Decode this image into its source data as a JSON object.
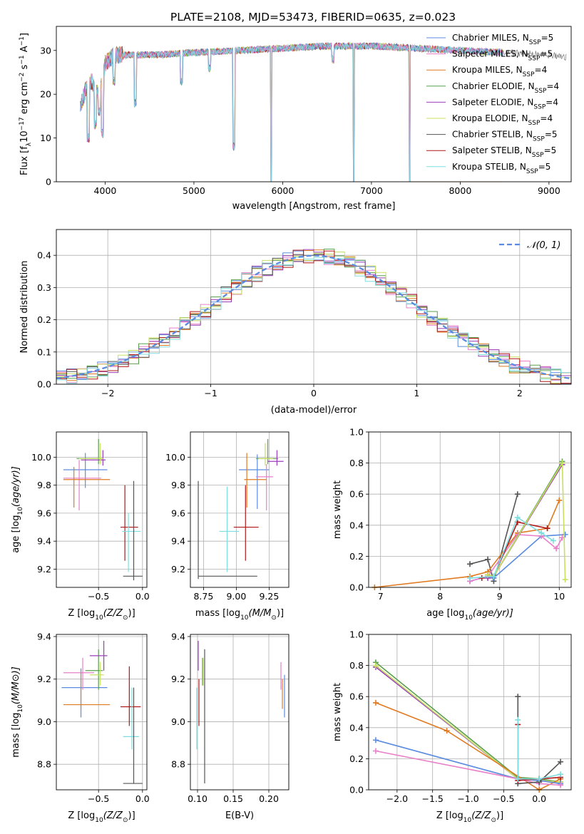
{
  "title": "PLATE=2108, MJD=53473, FIBERID=0635, z=0.023",
  "colors": {
    "blue": "#5b8be0",
    "orange": "#e07a20",
    "green": "#5aa050",
    "purple": "#9a3fb8",
    "yellowgreen": "#c8e060",
    "gray": "#555555",
    "red": "#b01818",
    "cyan": "#7fdde0",
    "pink": "#e87fc8",
    "grid": "#b0b0b0",
    "normal_curve": "#5b8be0"
  },
  "chart_data": [
    {
      "id": "spectrum",
      "type": "line",
      "xlabel": "wavelength [Angstrom, rest frame]",
      "ylabel": "Flux [f",
      "ylabel_sub": "λ",
      "ylabel_rest": "10",
      "ylabel_exp1": "−17",
      "ylabel_tail": " erg cm",
      "ylabel_exp2": "−2",
      "ylabel_tail2": " s",
      "ylabel_exp3": "−1",
      "ylabel_tail3": " A",
      "ylabel_exp4": "−1",
      "ylabel_end": "]",
      "xlim": [
        3450,
        9250
      ],
      "ylim": [
        0,
        35.5
      ],
      "xticks": [
        4000,
        5000,
        6000,
        7000,
        8000,
        9000
      ],
      "yticks": [
        0,
        10,
        20,
        30
      ],
      "grid": false,
      "legend_position": "upper-right",
      "legend": [
        {
          "label": "Chabrier MILES, N",
          "sub": "SSP",
          "suffix": "=5",
          "color": "blue"
        },
        {
          "label": "Salpeter MILES, N",
          "sub": "SSP",
          "suffix": "=5",
          "color": "pink"
        },
        {
          "label": "Kroupa MILES, N",
          "sub": "SSP",
          "suffix": "=4",
          "color": "orange"
        },
        {
          "label": "Chabrier ELODIE, N",
          "sub": "SSP",
          "suffix": "=4",
          "color": "green"
        },
        {
          "label": "Salpeter ELODIE, N",
          "sub": "SSP",
          "suffix": "=4",
          "color": "purple"
        },
        {
          "label": "Kroupa ELODIE, N",
          "sub": "SSP",
          "suffix": "=4",
          "color": "yellowgreen"
        },
        {
          "label": "Chabrier STELIB, N",
          "sub": "SSP",
          "suffix": "=5",
          "color": "gray"
        },
        {
          "label": "Salpeter STELIB, N",
          "sub": "SSP",
          "suffix": "=5",
          "color": "red"
        },
        {
          "label": "Kroupa STELIB, N",
          "sub": "SSP",
          "suffix": "=5",
          "color": "cyan"
        }
      ],
      "continuum": [
        [
          3720,
          17
        ],
        [
          3780,
          21
        ],
        [
          3850,
          23
        ],
        [
          3900,
          20
        ],
        [
          3960,
          22
        ],
        [
          4000,
          27
        ],
        [
          4100,
          29
        ],
        [
          4300,
          29
        ],
        [
          4600,
          29
        ],
        [
          5000,
          29.5
        ],
        [
          5500,
          30
        ],
        [
          6000,
          30.5
        ],
        [
          6500,
          31
        ],
        [
          7000,
          31
        ],
        [
          7500,
          30.5
        ],
        [
          8000,
          30
        ],
        [
          8500,
          29.5
        ],
        [
          9000,
          29
        ],
        [
          9200,
          28.5
        ]
      ],
      "dips": [
        [
          3810,
          9
        ],
        [
          3890,
          12
        ],
        [
          3935,
          15
        ],
        [
          3970,
          10
        ],
        [
          4100,
          22
        ],
        [
          4340,
          17
        ],
        [
          4860,
          22
        ],
        [
          5175,
          25
        ],
        [
          5450,
          7
        ],
        [
          5870,
          0
        ],
        [
          6565,
          27
        ],
        [
          6800,
          0
        ],
        [
          7430,
          0
        ]
      ],
      "spectrum_range": [
        3720,
        9200
      ]
    },
    {
      "id": "residuals",
      "type": "histogram",
      "xlabel": "(data-model)/error",
      "ylabel": "Normed distribution",
      "xlim": [
        -2.5,
        2.5
      ],
      "ylim": [
        0,
        0.48
      ],
      "xticks": [
        -2,
        -1,
        0,
        1,
        2
      ],
      "yticks": [
        0.0,
        0.1,
        0.2,
        0.3,
        0.4
      ],
      "grid": true,
      "legend_position": "upper-right",
      "normal_label": "𝒩(0, 1)",
      "bin_width": 0.1,
      "bin_start": -2.5,
      "series_colors": [
        "blue",
        "pink",
        "orange",
        "green",
        "purple",
        "yellowgreen",
        "gray",
        "red",
        "cyan"
      ]
    },
    {
      "id": "age_vs_Z",
      "type": "scatter",
      "xlabel": "Z [log",
      "xlabel_sub": "10",
      "xlabel_rest": "(Z/Z",
      "xlabel_sub2": "⊙",
      "xlabel_end": ")]",
      "ylabel": "age  [log",
      "ylabel_sub": "10",
      "ylabel_end": "(age/yr)]",
      "xlim": [
        -0.98,
        0.05
      ],
      "ylim": [
        9.07,
        10.18
      ],
      "xticks": [
        -0.5,
        0.0
      ],
      "yticks": [
        9.2,
        9.4,
        9.6,
        9.8,
        10.0
      ],
      "grid": true,
      "points": [
        {
          "c": "blue",
          "x": -0.65,
          "y": 9.91,
          "xe": [
            -0.9,
            -0.4
          ],
          "ye": [
            9.78,
            10.03
          ]
        },
        {
          "c": "pink",
          "x": -0.72,
          "y": 9.85,
          "xe": [
            -0.9,
            -0.47
          ],
          "ye": [
            9.62,
            9.98
          ]
        },
        {
          "c": "orange",
          "x": -0.78,
          "y": 9.84,
          "xe": [
            -0.9,
            -0.37
          ],
          "ye": [
            9.64,
            9.93
          ]
        },
        {
          "c": "green",
          "x": -0.5,
          "y": 9.99,
          "xe": [
            -0.75,
            -0.45
          ],
          "ye": [
            9.95,
            10.13
          ]
        },
        {
          "c": "purple",
          "x": -0.45,
          "y": 9.98,
          "xe": [
            -0.7,
            -0.42
          ],
          "ye": [
            9.94,
            10.05
          ]
        },
        {
          "c": "yellowgreen",
          "x": -0.48,
          "y": 9.99,
          "xe": [
            -0.72,
            -0.44
          ],
          "ye": [
            9.95,
            10.1
          ]
        },
        {
          "c": "red",
          "x": -0.2,
          "y": 9.5,
          "xe": [
            -0.25,
            -0.05
          ],
          "ye": [
            9.26,
            9.8
          ]
        },
        {
          "c": "cyan",
          "x": -0.16,
          "y": 9.47,
          "xe": [
            -0.23,
            -0.02
          ],
          "ye": [
            9.18,
            9.6
          ]
        },
        {
          "c": "gray",
          "x": -0.1,
          "y": 9.15,
          "xe": [
            -0.22,
            0.0
          ],
          "ye": [
            9.12,
            9.83
          ]
        }
      ]
    },
    {
      "id": "age_vs_mass",
      "type": "scatter",
      "xlabel": "mass [log",
      "xlabel_sub": "10",
      "xlabel_rest": "(M/M",
      "xlabel_sub2": "⊙",
      "xlabel_end": ")]",
      "xlim": [
        8.65,
        9.4
      ],
      "ylim": [
        9.07,
        10.18
      ],
      "xticks": [
        8.75,
        9.0,
        9.25
      ],
      "yticks": [
        9.2,
        9.4,
        9.6,
        9.8,
        10.0
      ],
      "grid": true,
      "points": [
        {
          "c": "blue",
          "x": 9.16,
          "y": 9.91,
          "xe": [
            9.02,
            9.25
          ],
          "ye": [
            9.63,
            10.02
          ]
        },
        {
          "c": "pink",
          "x": 9.23,
          "y": 9.86,
          "xe": [
            9.15,
            9.28
          ],
          "ye": [
            9.62,
            9.95
          ]
        },
        {
          "c": "orange",
          "x": 9.08,
          "y": 9.84,
          "xe": [
            9.06,
            9.23
          ],
          "ye": [
            9.64,
            10.03
          ]
        },
        {
          "c": "green",
          "x": 9.24,
          "y": 9.99,
          "xe": [
            9.15,
            9.32
          ],
          "ye": [
            9.95,
            10.13
          ]
        },
        {
          "c": "purple",
          "x": 9.31,
          "y": 9.97,
          "xe": [
            9.24,
            9.36
          ],
          "ye": [
            9.94,
            10.05
          ]
        },
        {
          "c": "yellowgreen",
          "x": 9.22,
          "y": 9.99,
          "xe": [
            9.17,
            9.28
          ],
          "ye": [
            9.94,
            10.1
          ]
        },
        {
          "c": "red",
          "x": 9.07,
          "y": 9.5,
          "xe": [
            8.98,
            9.17
          ],
          "ye": [
            9.26,
            9.8
          ]
        },
        {
          "c": "cyan",
          "x": 8.93,
          "y": 9.47,
          "xe": [
            8.87,
            9.02
          ],
          "ye": [
            9.18,
            9.79
          ]
        },
        {
          "c": "gray",
          "x": 8.71,
          "y": 9.15,
          "xe": [
            8.71,
            9.16
          ],
          "ye": [
            9.13,
            9.83
          ]
        }
      ]
    },
    {
      "id": "weight_vs_age",
      "type": "line",
      "xlabel": "age  [log",
      "xlabel_sub": "10",
      "xlabel_end": "(age/yr)]",
      "ylabel": "mass weight",
      "xlim": [
        6.8,
        10.2
      ],
      "ylim": [
        0,
        1.0
      ],
      "xticks": [
        7,
        8,
        9,
        10
      ],
      "yticks": [
        0.0,
        0.2,
        0.4,
        0.6,
        0.8,
        1.0
      ],
      "grid": true,
      "series": [
        {
          "c": "gray",
          "x": [
            8.5,
            8.8,
            8.9,
            9.3
          ],
          "y": [
            0.15,
            0.18,
            0.04,
            0.6
          ]
        },
        {
          "c": "orange",
          "x": [
            6.9,
            8.5,
            8.8,
            9.3,
            9.8,
            10.0
          ],
          "y": [
            0.0,
            0.07,
            0.1,
            0.35,
            0.38,
            0.56
          ]
        },
        {
          "c": "blue",
          "x": [
            8.5,
            8.8,
            8.9,
            9.7,
            10.1
          ],
          "y": [
            0.04,
            0.07,
            0.06,
            0.33,
            0.34
          ]
        },
        {
          "c": "pink",
          "x": [
            8.5,
            8.8,
            9.3,
            9.7,
            9.95,
            10.05
          ],
          "y": [
            0.04,
            0.07,
            0.34,
            0.33,
            0.25,
            0.32
          ]
        },
        {
          "c": "red",
          "x": [
            8.7,
            8.9,
            9.3,
            9.8
          ],
          "y": [
            0.06,
            0.07,
            0.42,
            0.38
          ]
        },
        {
          "c": "green",
          "x": [
            8.8,
            8.9,
            10.05
          ],
          "y": [
            0.08,
            0.07,
            0.81
          ]
        },
        {
          "c": "purple",
          "x": [
            8.8,
            8.9,
            10.05
          ],
          "y": [
            0.06,
            0.07,
            0.79
          ]
        },
        {
          "c": "yellowgreen",
          "x": [
            8.8,
            8.9,
            10.05,
            10.1
          ],
          "y": [
            0.08,
            0.07,
            0.8,
            0.05
          ]
        },
        {
          "c": "cyan",
          "x": [
            8.5,
            8.9,
            9.3,
            9.7,
            9.9
          ],
          "y": [
            0.06,
            0.07,
            0.45,
            0.35,
            0.3
          ]
        }
      ]
    },
    {
      "id": "mass_vs_Z",
      "type": "scatter",
      "xlabel": "Z [log",
      "xlabel_sub": "10",
      "xlabel_rest": "(Z/Z",
      "xlabel_sub2": "⊙",
      "xlabel_end": ")]",
      "ylabel": "mass [log",
      "ylabel_sub": "10",
      "ylabel_end": "(M/M⊙)]",
      "xlim": [
        -0.98,
        0.05
      ],
      "ylim": [
        8.68,
        9.41
      ],
      "xticks": [
        -0.5,
        0.0
      ],
      "yticks": [
        8.8,
        9.0,
        9.2,
        9.4
      ],
      "grid": true,
      "points": [
        {
          "c": "blue",
          "x": -0.7,
          "y": 9.16,
          "xe": [
            -0.92,
            -0.4
          ],
          "ye": [
            9.02,
            9.25
          ]
        },
        {
          "c": "pink",
          "x": -0.68,
          "y": 9.23,
          "xe": [
            -0.9,
            -0.55
          ],
          "ye": [
            9.15,
            9.3
          ]
        },
        {
          "c": "orange",
          "x": -0.7,
          "y": 9.08,
          "xe": [
            -0.9,
            -0.37
          ],
          "ye": [
            9.06,
            9.23
          ]
        },
        {
          "c": "green",
          "x": -0.5,
          "y": 9.24,
          "xe": [
            -0.65,
            -0.45
          ],
          "ye": [
            9.15,
            9.34
          ]
        },
        {
          "c": "purple",
          "x": -0.44,
          "y": 9.31,
          "xe": [
            -0.6,
            -0.4
          ],
          "ye": [
            9.24,
            9.38
          ]
        },
        {
          "c": "yellowgreen",
          "x": -0.48,
          "y": 9.22,
          "xe": [
            -0.6,
            -0.44
          ],
          "ye": [
            9.17,
            9.28
          ]
        },
        {
          "c": "red",
          "x": -0.15,
          "y": 9.07,
          "xe": [
            -0.25,
            -0.02
          ],
          "ye": [
            8.98,
            9.26
          ]
        },
        {
          "c": "cyan",
          "x": -0.12,
          "y": 8.93,
          "xe": [
            -0.22,
            -0.04
          ],
          "ye": [
            8.87,
            9.16
          ]
        },
        {
          "c": "gray",
          "x": -0.1,
          "y": 8.71,
          "xe": [
            -0.22,
            0.0
          ],
          "ye": [
            8.71,
            9.16
          ]
        }
      ]
    },
    {
      "id": "mass_vs_ebv",
      "type": "scatter",
      "xlabel": "E(B-V)",
      "xlim": [
        0.09,
        0.228
      ],
      "ylim": [
        8.68,
        9.41
      ],
      "xticks": [
        0.1,
        0.15,
        0.2
      ],
      "yticks": [
        8.8,
        9.0,
        9.2,
        9.4
      ],
      "grid": true,
      "points": [
        {
          "c": "blue",
          "x": 0.222,
          "y": 9.16,
          "ye": [
            9.02,
            9.22
          ]
        },
        {
          "c": "pink",
          "x": 0.217,
          "y": 9.23,
          "ye": [
            9.15,
            9.28
          ]
        },
        {
          "c": "orange",
          "x": 0.219,
          "y": 9.08,
          "ye": [
            9.06,
            9.2
          ]
        },
        {
          "c": "green",
          "x": 0.107,
          "y": 9.24,
          "ye": [
            9.17,
            9.3
          ]
        },
        {
          "c": "purple",
          "x": 0.101,
          "y": 9.31,
          "ye": [
            9.24,
            9.38
          ]
        },
        {
          "c": "yellowgreen",
          "x": 0.108,
          "y": 9.22,
          "ye": [
            9.17,
            9.3
          ]
        },
        {
          "c": "red",
          "x": 0.102,
          "y": 9.07,
          "ye": [
            8.98,
            9.2
          ]
        },
        {
          "c": "cyan",
          "x": 0.099,
          "y": 8.93,
          "ye": [
            8.87,
            9.16
          ]
        },
        {
          "c": "gray",
          "x": 0.11,
          "y": 8.71,
          "ye": [
            8.71,
            9.34
          ]
        }
      ]
    },
    {
      "id": "weight_vs_Z",
      "type": "line",
      "xlabel": "Z [log",
      "xlabel_sub": "10",
      "xlabel_rest": "(Z/Z",
      "xlabel_sub2": "⊙",
      "xlabel_end": ")]",
      "ylabel": "mass weight",
      "xlim": [
        -2.4,
        0.45
      ],
      "ylim": [
        0,
        1.0
      ],
      "xticks": [
        -2.0,
        -1.5,
        -1.0,
        -0.5,
        0.0
      ],
      "yticks": [
        0.0,
        0.2,
        0.4,
        0.6,
        0.8,
        1.0
      ],
      "grid": true,
      "series": [
        {
          "c": "green",
          "x": [
            -2.3,
            -0.3,
            0.0,
            0.3
          ],
          "y": [
            0.82,
            0.08,
            0.07,
            0.05
          ]
        },
        {
          "c": "purple",
          "x": [
            -2.3,
            -0.3,
            0.0,
            0.3
          ],
          "y": [
            0.79,
            0.07,
            0.06,
            0.04
          ]
        },
        {
          "c": "yellowgreen",
          "x": [
            -2.3,
            -0.3,
            0.0,
            0.3
          ],
          "y": [
            0.8,
            0.07,
            0.06,
            0.05
          ]
        },
        {
          "c": "orange",
          "x": [
            -2.3,
            -1.3,
            0.0,
            0.3
          ],
          "y": [
            0.56,
            0.38,
            0.0,
            0.07
          ]
        },
        {
          "c": "blue",
          "x": [
            -2.3,
            -0.3,
            0.0,
            0.3
          ],
          "y": [
            0.32,
            0.07,
            0.06,
            0.04
          ]
        },
        {
          "c": "pink",
          "x": [
            -2.3,
            -0.3,
            0.0,
            0.3
          ],
          "y": [
            0.25,
            0.07,
            0.04,
            0.03
          ]
        },
        {
          "c": "gray",
          "x": [
            -0.3,
            -0.3,
            0.0,
            0.3
          ],
          "y": [
            0.6,
            0.04,
            0.05,
            0.18
          ]
        },
        {
          "c": "red",
          "x": [
            -0.3,
            -0.3,
            0.0,
            0.3
          ],
          "y": [
            0.42,
            0.06,
            0.07,
            0.08
          ]
        },
        {
          "c": "cyan",
          "x": [
            -0.3,
            -0.3,
            0.0,
            0.3
          ],
          "y": [
            0.45,
            0.07,
            0.07,
            0.1
          ]
        }
      ]
    }
  ]
}
